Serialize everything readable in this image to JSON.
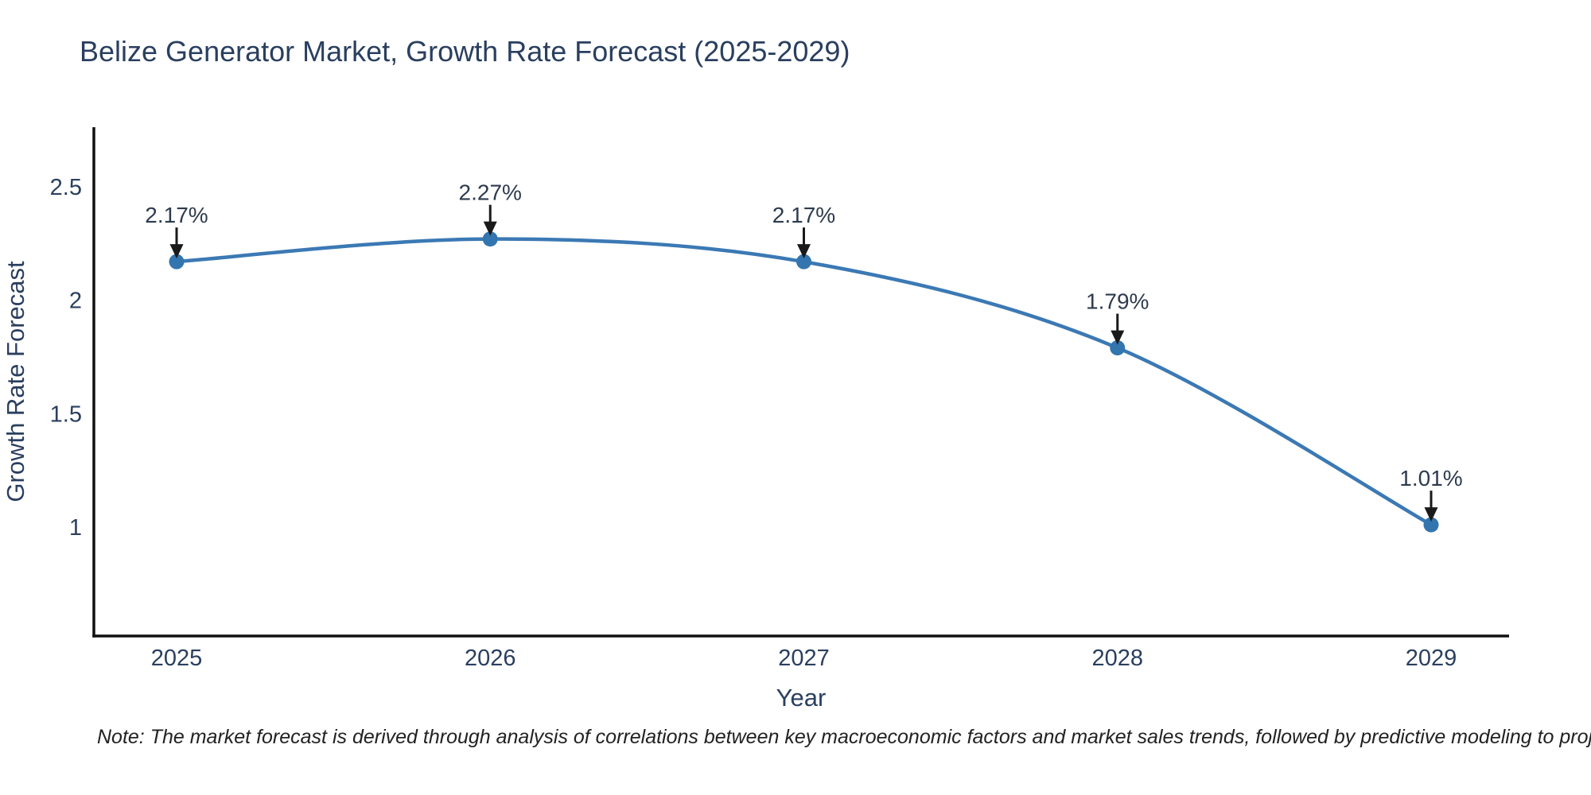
{
  "chart_data": {
    "type": "line",
    "title": "Belize Generator Market, Growth Rate Forecast (2025-2029)",
    "x": [
      "2025",
      "2026",
      "2027",
      "2028",
      "2029"
    ],
    "series": [
      {
        "name": "Growth Rate Forecast",
        "values": [
          2.17,
          2.27,
          2.17,
          1.79,
          1.01
        ],
        "point_labels": [
          "2.17%",
          "2.27%",
          "2.17%",
          "1.79%",
          "1.01%"
        ]
      }
    ],
    "xlabel": "Year",
    "ylabel": "Growth Rate Forecast",
    "yticks": [
      2.5,
      2,
      1.5,
      1
    ],
    "ylim": [
      0.52,
      2.76
    ],
    "grid": false,
    "legend_visible": false,
    "line_shape": "spline",
    "colors": {
      "line": "#3b79b4",
      "marker": "#3375af",
      "axis": "#111111",
      "arrow": "#1a1a1a",
      "text": "#2a3f5f",
      "annotation_text": "#2e3b4e",
      "background": "#ffffff"
    },
    "note": "Note: The market forecast is derived through analysis of correlations between key macroeconomic factors and market sales trends, followed by predictive modeling to project future sales"
  }
}
